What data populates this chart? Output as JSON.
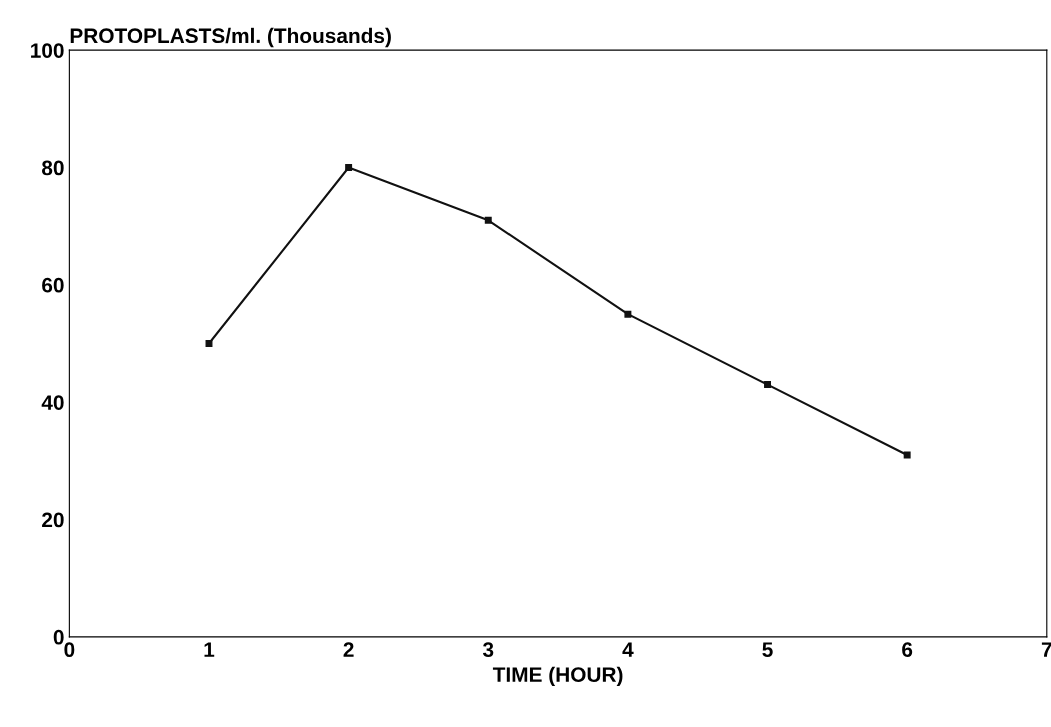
{
  "chart_data": {
    "type": "line",
    "ylabel": "PROTOPLASTS/ml. (Thousands)",
    "xlabel": "TIME (HOUR)",
    "x": [
      1,
      2,
      3,
      4,
      5,
      6
    ],
    "series": [
      {
        "color": "#111111",
        "values": [
          50,
          80,
          71,
          55,
          43,
          31
        ]
      }
    ],
    "xlim": [
      0,
      7
    ],
    "xticks": [
      0,
      1,
      2,
      3,
      4,
      5,
      6,
      7
    ],
    "ylim": [
      0,
      100
    ],
    "yticks": [
      0,
      20,
      40,
      60,
      80,
      100
    ],
    "marker": "square",
    "line_style": "solid",
    "grid": false,
    "legend": false
  }
}
